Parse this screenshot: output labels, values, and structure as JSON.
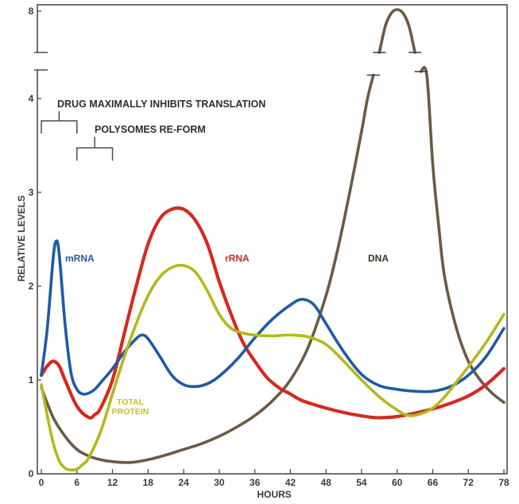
{
  "chart_data": {
    "type": "line",
    "title": "",
    "xlabel": "HOURS",
    "ylabel": "RELATIVE LEVELS",
    "xlim": [
      0,
      78
    ],
    "ylim": [
      0,
      4.25
    ],
    "y_break": {
      "from": 4.25,
      "to": 7.85
    },
    "x_ticks": [
      "0",
      "6",
      "12",
      "18",
      "24",
      "30",
      "36",
      "42",
      "48",
      "54",
      "60",
      "66",
      "72",
      "78"
    ],
    "y_ticks": [
      "0",
      "1",
      "2",
      "3",
      "4",
      "8"
    ],
    "annotations": [
      {
        "text": "DRUG MAXIMALLY INHIBITS TRANSLATION",
        "x_range": [
          0,
          6
        ]
      },
      {
        "text": "POLYSOMES RE-FORM",
        "x_range": [
          6,
          12
        ]
      }
    ],
    "series": [
      {
        "name": "mRNA",
        "color": "#1f5aa6",
        "x": [
          0,
          1,
          2,
          2.5,
          3,
          4,
          5,
          6,
          7,
          8,
          9,
          10,
          12,
          14,
          16,
          17,
          18,
          20,
          22,
          24,
          26,
          28,
          30,
          33,
          36,
          39,
          42,
          44,
          46,
          48,
          51,
          54,
          57,
          60,
          63,
          66,
          69,
          72,
          75,
          78
        ],
        "y": [
          1.05,
          1.55,
          2.3,
          2.48,
          2.35,
          1.6,
          1.08,
          0.9,
          0.85,
          0.86,
          0.9,
          0.97,
          1.12,
          1.3,
          1.44,
          1.48,
          1.44,
          1.25,
          1.05,
          0.95,
          0.93,
          0.96,
          1.04,
          1.22,
          1.45,
          1.65,
          1.8,
          1.86,
          1.8,
          1.6,
          1.3,
          1.06,
          0.94,
          0.9,
          0.88,
          0.88,
          0.93,
          1.05,
          1.25,
          1.55
        ]
      },
      {
        "name": "rRNA",
        "color": "#d42a1e",
        "x": [
          0,
          1,
          2,
          3,
          4,
          6,
          8,
          9,
          10,
          12,
          14,
          16,
          18,
          20,
          22,
          24,
          26,
          28,
          30,
          32,
          34,
          36,
          38,
          40,
          42,
          44,
          48,
          52,
          56,
          58,
          60,
          64,
          68,
          72,
          75,
          78
        ],
        "y": [
          1.05,
          1.15,
          1.2,
          1.15,
          1.0,
          0.72,
          0.6,
          0.63,
          0.7,
          1.0,
          1.5,
          2.0,
          2.45,
          2.72,
          2.82,
          2.82,
          2.7,
          2.45,
          2.05,
          1.7,
          1.4,
          1.2,
          1.03,
          0.92,
          0.85,
          0.78,
          0.7,
          0.64,
          0.6,
          0.6,
          0.61,
          0.66,
          0.73,
          0.83,
          0.95,
          1.12
        ]
      },
      {
        "name": "TOTAL PROTEIN",
        "color": "#b5b81c",
        "x": [
          0,
          1,
          2,
          3,
          4,
          5,
          6,
          7,
          8,
          10,
          12,
          14,
          16,
          18,
          20,
          22,
          24,
          26,
          28,
          30,
          32,
          34,
          36,
          39,
          42,
          45,
          48,
          51,
          54,
          57,
          60,
          62,
          64,
          66,
          68,
          70,
          72,
          75,
          78
        ],
        "y": [
          0.95,
          0.62,
          0.33,
          0.14,
          0.06,
          0.04,
          0.05,
          0.1,
          0.17,
          0.45,
          0.85,
          1.25,
          1.6,
          1.9,
          2.1,
          2.2,
          2.22,
          2.15,
          1.95,
          1.7,
          1.55,
          1.5,
          1.48,
          1.47,
          1.48,
          1.46,
          1.38,
          1.2,
          1.0,
          0.82,
          0.68,
          0.62,
          0.64,
          0.7,
          0.82,
          0.98,
          1.14,
          1.4,
          1.7
        ]
      },
      {
        "name": "DNA",
        "color": "#6b5a44",
        "x": [
          0,
          2,
          4,
          6,
          8,
          10,
          12,
          15,
          18,
          21,
          24,
          27,
          30,
          33,
          36,
          39,
          42,
          45,
          48,
          50,
          52,
          54,
          55,
          56,
          57,
          58,
          59,
          60,
          61,
          62,
          63,
          64,
          65,
          66,
          67,
          68,
          70,
          72,
          74,
          76,
          78
        ],
        "y": [
          0.92,
          0.6,
          0.4,
          0.26,
          0.19,
          0.15,
          0.13,
          0.12,
          0.15,
          0.2,
          0.26,
          0.32,
          0.4,
          0.5,
          0.62,
          0.78,
          1.0,
          1.35,
          1.9,
          2.4,
          3.0,
          3.65,
          4.0,
          4.25,
          7.35,
          7.7,
          7.87,
          7.92,
          7.87,
          7.7,
          7.35,
          6.9,
          4.25,
          3.3,
          2.65,
          2.1,
          1.55,
          1.2,
          1.0,
          0.86,
          0.76
        ]
      }
    ]
  }
}
